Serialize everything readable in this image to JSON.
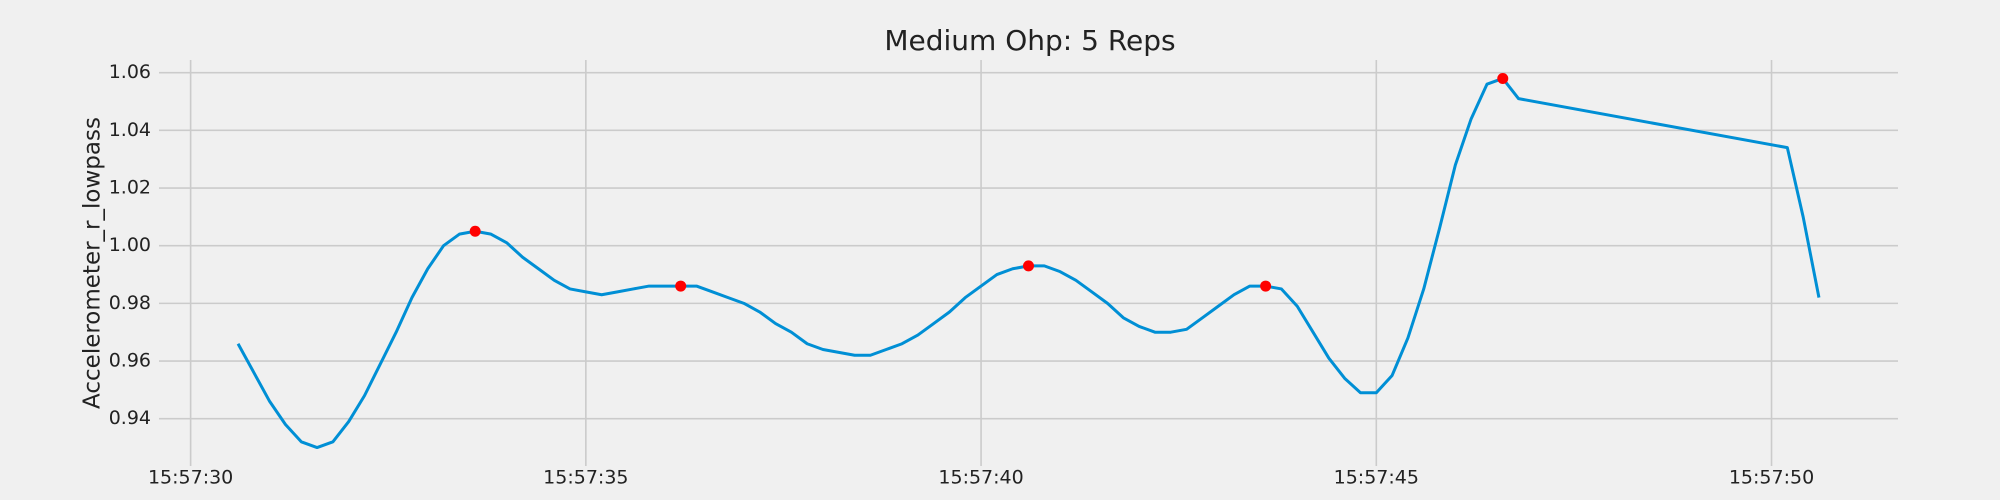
{
  "chart_data": {
    "type": "line",
    "title": "Medium Ohp: 5 Reps",
    "y_label": "Accelerometer_r_lowpass",
    "grid": true,
    "xlim": [
      "15:57:29.6",
      "15:57:51.6"
    ],
    "xticks": [
      "15:57:30",
      "15:57:35",
      "15:57:40",
      "15:57:45",
      "15:57:50"
    ],
    "ylim": [
      0.9236,
      1.0644
    ],
    "yticks": [
      0.94,
      0.96,
      0.98,
      {
        "value": 1,
        "label": "1.00"
      },
      1.02,
      1.04,
      1.06
    ],
    "series": [
      {
        "type": "line",
        "color": "#008fd5",
        "x": [
          "15:57:30.6",
          "15:57:30.8",
          "15:57:31.0",
          "15:57:31.2",
          "15:57:31.4",
          "15:57:31.6",
          "15:57:31.8",
          "15:57:32.0",
          "15:57:32.2",
          "15:57:32.4",
          "15:57:32.6",
          "15:57:32.8",
          "15:57:33.0",
          "15:57:33.2",
          "15:57:33.4",
          "15:57:33.6",
          "15:57:33.8",
          "15:57:34.0",
          "15:57:34.2",
          "15:57:34.4",
          "15:57:34.6",
          "15:57:34.8",
          "15:57:35.0",
          "15:57:35.2",
          "15:57:35.4",
          "15:57:35.6",
          "15:57:35.8",
          "15:57:36.0",
          "15:57:36.2",
          "15:57:36.4",
          "15:57:36.6",
          "15:57:36.8",
          "15:57:37.0",
          "15:57:37.2",
          "15:57:37.4",
          "15:57:37.6",
          "15:57:37.8",
          "15:57:38.0",
          "15:57:38.2",
          "15:57:38.4",
          "15:57:38.6",
          "15:57:38.8",
          "15:57:39.0",
          "15:57:39.2",
          "15:57:39.4",
          "15:57:39.6",
          "15:57:39.8",
          "15:57:40.0",
          "15:57:40.2",
          "15:57:40.4",
          "15:57:40.6",
          "15:57:40.8",
          "15:57:41.0",
          "15:57:41.2",
          "15:57:41.4",
          "15:57:41.6",
          "15:57:41.8",
          "15:57:42.0",
          "15:57:42.2",
          "15:57:42.4",
          "15:57:42.6",
          "15:57:42.8",
          "15:57:43.0",
          "15:57:43.2",
          "15:57:43.4",
          "15:57:43.6",
          "15:57:43.8",
          "15:57:44.0",
          "15:57:44.2",
          "15:57:44.4",
          "15:57:44.6",
          "15:57:44.8",
          "15:57:45.0",
          "15:57:45.2",
          "15:57:45.4",
          "15:57:45.6",
          "15:57:45.8",
          "15:57:46.0",
          "15:57:46.2",
          "15:57:46.4",
          "15:57:46.6",
          "15:57:46.8",
          "15:57:50.2",
          "15:57:50.4",
          "15:57:50.6"
        ],
        "values": [
          0.966,
          0.956,
          0.946,
          0.938,
          0.932,
          0.93,
          0.932,
          0.939,
          0.948,
          0.959,
          0.97,
          0.982,
          0.992,
          1.0,
          1.004,
          1.005,
          1.004,
          1.001,
          0.996,
          0.992,
          0.988,
          0.985,
          0.984,
          0.983,
          0.984,
          0.985,
          0.986,
          0.986,
          0.986,
          0.986,
          0.984,
          0.982,
          0.98,
          0.977,
          0.973,
          0.97,
          0.966,
          0.964,
          0.963,
          0.962,
          0.962,
          0.964,
          0.966,
          0.969,
          0.973,
          0.977,
          0.982,
          0.986,
          0.99,
          0.992,
          0.993,
          0.993,
          0.991,
          0.988,
          0.984,
          0.98,
          0.975,
          0.972,
          0.97,
          0.97,
          0.971,
          0.975,
          0.979,
          0.983,
          0.986,
          0.986,
          0.985,
          0.979,
          0.97,
          0.961,
          0.954,
          0.949,
          0.949,
          0.955,
          0.968,
          0.985,
          1.006,
          1.028,
          1.044,
          1.056,
          1.058,
          1.051,
          1.034,
          1.01,
          0.982
        ]
      },
      {
        "type": "scatter",
        "color": "#ff0000",
        "x": [
          "15:57:33.6",
          "15:57:36.2",
          "15:57:40.6",
          "15:57:43.6",
          "15:57:46.6"
        ],
        "values": [
          1.005,
          0.986,
          0.993,
          0.986,
          1.058
        ]
      }
    ]
  }
}
